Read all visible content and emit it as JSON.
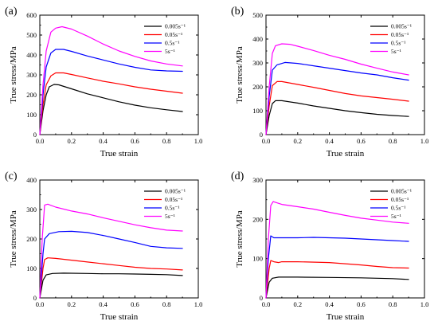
{
  "figure": {
    "panels": [
      "(a)",
      "(b)",
      "(c)",
      "(d)"
    ]
  },
  "chart_data": [
    {
      "type": "line",
      "panel_label": "(a)",
      "xlabel": "True strain",
      "ylabel": "True stress/MPa",
      "xlim": [
        0.0,
        1.0
      ],
      "ylim": [
        0,
        600
      ],
      "xticks": [
        "0.0",
        "0.2",
        "0.4",
        "0.6",
        "0.8",
        "1.0"
      ],
      "yticks": [
        "0",
        "100",
        "200",
        "300",
        "400",
        "500",
        "600"
      ],
      "legend_position": "top-right",
      "series": [
        {
          "name": "0.005s⁻¹",
          "color": "#000000",
          "points": [
            [
              0,
              0
            ],
            [
              0.02,
              120
            ],
            [
              0.04,
              200
            ],
            [
              0.06,
              240
            ],
            [
              0.09,
              252
            ],
            [
              0.12,
              250
            ],
            [
              0.2,
              230
            ],
            [
              0.3,
              205
            ],
            [
              0.4,
              185
            ],
            [
              0.5,
              165
            ],
            [
              0.6,
              148
            ],
            [
              0.7,
              135
            ],
            [
              0.8,
              125
            ],
            [
              0.9,
              116
            ]
          ]
        },
        {
          "name": "0.05s⁻¹",
          "color": "#ff0000",
          "points": [
            [
              0,
              0
            ],
            [
              0.02,
              150
            ],
            [
              0.04,
              250
            ],
            [
              0.07,
              295
            ],
            [
              0.1,
              310
            ],
            [
              0.15,
              310
            ],
            [
              0.2,
              302
            ],
            [
              0.3,
              285
            ],
            [
              0.4,
              268
            ],
            [
              0.5,
              255
            ],
            [
              0.6,
              240
            ],
            [
              0.7,
              228
            ],
            [
              0.8,
              218
            ],
            [
              0.9,
              208
            ]
          ]
        },
        {
          "name": "0.5s⁻¹",
          "color": "#0000ff",
          "points": [
            [
              0,
              0
            ],
            [
              0.02,
              200
            ],
            [
              0.04,
              340
            ],
            [
              0.07,
              410
            ],
            [
              0.1,
              428
            ],
            [
              0.15,
              428
            ],
            [
              0.2,
              418
            ],
            [
              0.3,
              395
            ],
            [
              0.4,
              375
            ],
            [
              0.5,
              355
            ],
            [
              0.6,
              338
            ],
            [
              0.7,
              325
            ],
            [
              0.8,
              320
            ],
            [
              0.9,
              318
            ]
          ]
        },
        {
          "name": "5s⁻¹",
          "color": "#ff00ff",
          "points": [
            [
              0,
              0
            ],
            [
              0.02,
              250
            ],
            [
              0.04,
              420
            ],
            [
              0.07,
              515
            ],
            [
              0.1,
              535
            ],
            [
              0.14,
              542
            ],
            [
              0.2,
              530
            ],
            [
              0.3,
              495
            ],
            [
              0.4,
              455
            ],
            [
              0.5,
              420
            ],
            [
              0.6,
              393
            ],
            [
              0.7,
              370
            ],
            [
              0.8,
              355
            ],
            [
              0.9,
              345
            ]
          ]
        }
      ]
    },
    {
      "type": "line",
      "panel_label": "(b)",
      "xlabel": "True strain",
      "ylabel": "True stress/MPa",
      "xlim": [
        0.0,
        1.0
      ],
      "ylim": [
        0,
        500
      ],
      "xticks": [
        "0.0",
        "0.2",
        "0.4",
        "0.6",
        "0.8",
        "1.0"
      ],
      "yticks": [
        "0",
        "100",
        "200",
        "300",
        "400",
        "500"
      ],
      "legend_position": "top-right",
      "series": [
        {
          "name": "0.005s⁻¹",
          "color": "#000000",
          "points": [
            [
              0,
              0
            ],
            [
              0.02,
              80
            ],
            [
              0.04,
              130
            ],
            [
              0.06,
              142
            ],
            [
              0.1,
              142
            ],
            [
              0.2,
              132
            ],
            [
              0.3,
              120
            ],
            [
              0.4,
              110
            ],
            [
              0.5,
              100
            ],
            [
              0.6,
              92
            ],
            [
              0.7,
              85
            ],
            [
              0.8,
              80
            ],
            [
              0.9,
              76
            ]
          ]
        },
        {
          "name": "0.05s⁻¹",
          "color": "#ff0000",
          "points": [
            [
              0,
              0
            ],
            [
              0.02,
              120
            ],
            [
              0.04,
              205
            ],
            [
              0.07,
              222
            ],
            [
              0.1,
              222
            ],
            [
              0.2,
              210
            ],
            [
              0.3,
              198
            ],
            [
              0.4,
              185
            ],
            [
              0.5,
              172
            ],
            [
              0.6,
              162
            ],
            [
              0.7,
              155
            ],
            [
              0.8,
              148
            ],
            [
              0.9,
              140
            ]
          ]
        },
        {
          "name": "0.5s⁻¹",
          "color": "#0000ff",
          "points": [
            [
              0,
              0
            ],
            [
              0.02,
              160
            ],
            [
              0.04,
              270
            ],
            [
              0.07,
              292
            ],
            [
              0.12,
              302
            ],
            [
              0.2,
              298
            ],
            [
              0.3,
              288
            ],
            [
              0.4,
              278
            ],
            [
              0.5,
              268
            ],
            [
              0.6,
              258
            ],
            [
              0.7,
              250
            ],
            [
              0.8,
              238
            ],
            [
              0.9,
              228
            ]
          ]
        },
        {
          "name": "5s⁻¹",
          "color": "#ff00ff",
          "points": [
            [
              0,
              0
            ],
            [
              0.02,
              200
            ],
            [
              0.04,
              340
            ],
            [
              0.06,
              372
            ],
            [
              0.1,
              380
            ],
            [
              0.15,
              378
            ],
            [
              0.2,
              370
            ],
            [
              0.3,
              352
            ],
            [
              0.4,
              332
            ],
            [
              0.5,
              315
            ],
            [
              0.6,
              295
            ],
            [
              0.7,
              278
            ],
            [
              0.8,
              262
            ],
            [
              0.9,
              250
            ]
          ]
        }
      ]
    },
    {
      "type": "line",
      "panel_label": "(c)",
      "xlabel": "True strain",
      "ylabel": "True stress/MPa",
      "xlim": [
        0.0,
        1.0
      ],
      "ylim": [
        0,
        400
      ],
      "xticks": [
        "0.0",
        "0.2",
        "0.4",
        "0.6",
        "0.8",
        "1.0"
      ],
      "yticks": [
        "0",
        "100",
        "200",
        "300",
        "400"
      ],
      "legend_position": "top-right",
      "series": [
        {
          "name": "0.005s⁻¹",
          "color": "#000000",
          "points": [
            [
              0,
              0
            ],
            [
              0.02,
              60
            ],
            [
              0.04,
              78
            ],
            [
              0.08,
              83
            ],
            [
              0.15,
              84
            ],
            [
              0.3,
              83
            ],
            [
              0.4,
              82
            ],
            [
              0.5,
              82
            ],
            [
              0.6,
              81
            ],
            [
              0.7,
              80
            ],
            [
              0.8,
              79
            ],
            [
              0.9,
              76
            ]
          ]
        },
        {
          "name": "0.05s⁻¹",
          "color": "#ff0000",
          "points": [
            [
              0,
              0
            ],
            [
              0.02,
              100
            ],
            [
              0.03,
              130
            ],
            [
              0.05,
              136
            ],
            [
              0.1,
              134
            ],
            [
              0.2,
              128
            ],
            [
              0.3,
              122
            ],
            [
              0.4,
              116
            ],
            [
              0.5,
              110
            ],
            [
              0.6,
              104
            ],
            [
              0.7,
              100
            ],
            [
              0.8,
              98
            ],
            [
              0.9,
              95
            ]
          ]
        },
        {
          "name": "0.5s⁻¹",
          "color": "#0000ff",
          "points": [
            [
              0,
              0
            ],
            [
              0.02,
              150
            ],
            [
              0.03,
              200
            ],
            [
              0.06,
              218
            ],
            [
              0.12,
              225
            ],
            [
              0.2,
              226
            ],
            [
              0.3,
              222
            ],
            [
              0.4,
              212
            ],
            [
              0.5,
              200
            ],
            [
              0.6,
              188
            ],
            [
              0.7,
              175
            ],
            [
              0.8,
              170
            ],
            [
              0.9,
              168
            ]
          ]
        },
        {
          "name": "5s⁻¹",
          "color": "#ff00ff",
          "points": [
            [
              0,
              0
            ],
            [
              0.015,
              200
            ],
            [
              0.03,
              315
            ],
            [
              0.05,
              318
            ],
            [
              0.1,
              308
            ],
            [
              0.2,
              295
            ],
            [
              0.3,
              285
            ],
            [
              0.4,
              272
            ],
            [
              0.5,
              260
            ],
            [
              0.6,
              248
            ],
            [
              0.7,
              238
            ],
            [
              0.8,
              230
            ],
            [
              0.9,
              227
            ]
          ]
        }
      ]
    },
    {
      "type": "line",
      "panel_label": "(d)",
      "xlabel": "True strain",
      "ylabel": "True stress/MPa",
      "xlim": [
        0.0,
        1.0
      ],
      "ylim": [
        0,
        300
      ],
      "xticks": [
        "0.0",
        "0.2",
        "0.4",
        "0.6",
        "0.8",
        "1.0"
      ],
      "yticks": [
        "0",
        "100",
        "200",
        "300"
      ],
      "legend_position": "top-right",
      "series": [
        {
          "name": "0.005s⁻¹",
          "color": "#000000",
          "points": [
            [
              0,
              0
            ],
            [
              0.02,
              40
            ],
            [
              0.04,
              50
            ],
            [
              0.08,
              53
            ],
            [
              0.2,
              53
            ],
            [
              0.4,
              52
            ],
            [
              0.6,
              51
            ],
            [
              0.8,
              49
            ],
            [
              0.9,
              47
            ]
          ]
        },
        {
          "name": "0.05s⁻¹",
          "color": "#ff0000",
          "points": [
            [
              0,
              0
            ],
            [
              0.02,
              75
            ],
            [
              0.03,
              95
            ],
            [
              0.05,
              92
            ],
            [
              0.08,
              90
            ],
            [
              0.1,
              92
            ],
            [
              0.2,
              92
            ],
            [
              0.4,
              90
            ],
            [
              0.5,
              87
            ],
            [
              0.6,
              84
            ],
            [
              0.7,
              80
            ],
            [
              0.8,
              77
            ],
            [
              0.9,
              76
            ]
          ]
        },
        {
          "name": "0.5s⁻¹",
          "color": "#0000ff",
          "points": [
            [
              0,
              0
            ],
            [
              0.015,
              100
            ],
            [
              0.03,
              158
            ],
            [
              0.05,
              153
            ],
            [
              0.1,
              153
            ],
            [
              0.2,
              153
            ],
            [
              0.3,
              154
            ],
            [
              0.4,
              153
            ],
            [
              0.5,
              152
            ],
            [
              0.6,
              150
            ],
            [
              0.7,
              148
            ],
            [
              0.8,
              146
            ],
            [
              0.9,
              144
            ]
          ]
        },
        {
          "name": "5s⁻¹",
          "color": "#ff00ff",
          "points": [
            [
              0,
              0
            ],
            [
              0.015,
              150
            ],
            [
              0.03,
              235
            ],
            [
              0.045,
              245
            ],
            [
              0.1,
              238
            ],
            [
              0.2,
              232
            ],
            [
              0.3,
              226
            ],
            [
              0.4,
              218
            ],
            [
              0.5,
              210
            ],
            [
              0.6,
              203
            ],
            [
              0.7,
              198
            ],
            [
              0.8,
              193
            ],
            [
              0.9,
              190
            ]
          ]
        }
      ]
    }
  ]
}
